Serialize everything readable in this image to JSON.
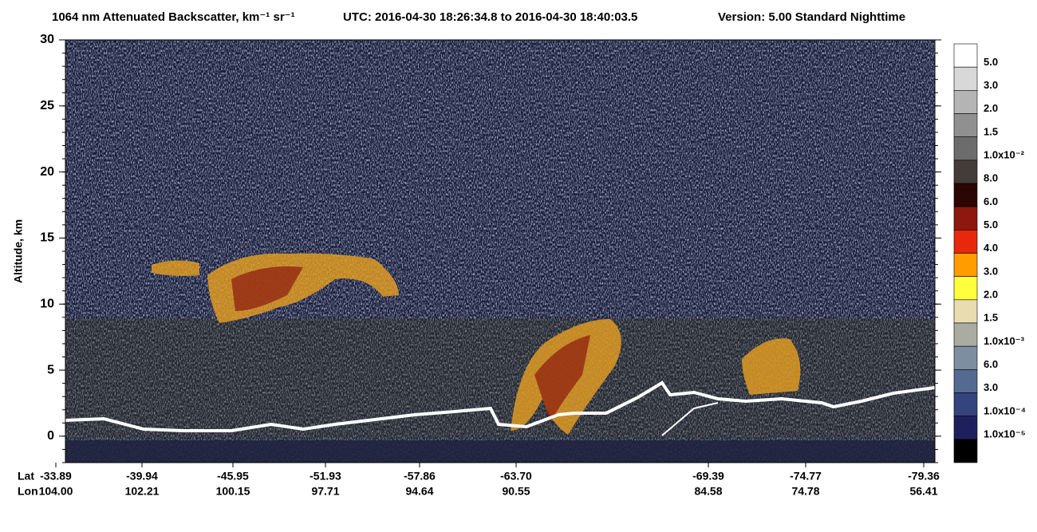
{
  "chart_data": {
    "type": "profile-image",
    "title": "1064 nm Attenuated Backscatter, km⁻¹ sr⁻¹",
    "time_range": "UTC:  2016-04-30 18:26:34.8  to  2016-04-30 18:40:03.5",
    "version": "Version: 5.00  Standard  Nighttime",
    "ylabel": "Altitude, km",
    "ylim": [
      -2,
      30
    ],
    "yticks": [
      0,
      5,
      10,
      15,
      20,
      25,
      30
    ],
    "x_rows": [
      {
        "name": "Lat",
        "labels": [
          "-33.89",
          "-39.94",
          "-45.95",
          "-51.93",
          "-57.86",
          "-63.70",
          "-69.39",
          "-74.77",
          "-79.36"
        ]
      },
      {
        "name": "Lon",
        "labels": [
          "104.00",
          "102.21",
          "100.15",
          "97.71",
          "94.64",
          "90.55",
          "84.58",
          "74.78",
          "56.41"
        ]
      }
    ],
    "colorbar": {
      "colors": [
        "#ffffff",
        "#d8d8d8",
        "#b4b4b4",
        "#909090",
        "#6c6c6c",
        "#443c38",
        "#2a0604",
        "#8c1810",
        "#e8280c",
        "#ff9c00",
        "#ffff3c",
        "#e8dcb0",
        "#aaaca2",
        "#7c8ea0",
        "#546a90",
        "#34447f",
        "#1e205e",
        "#000000"
      ],
      "labels": [
        "5.0",
        "3.0",
        "2.0",
        "1.5",
        "1.0x10⁻²",
        "8.0",
        "6.0",
        "5.0",
        "4.0",
        "3.0",
        "2.0",
        "1.5",
        "1.0x10⁻³",
        "6.0",
        "3.0",
        "1.0x10⁻⁴",
        "1.0x10⁻⁵"
      ]
    }
  }
}
